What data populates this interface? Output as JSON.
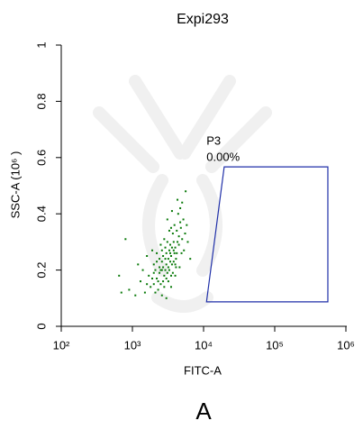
{
  "chart_data": {
    "type": "scatter",
    "title": "Expi293",
    "xlabel": "FITC-A",
    "ylabel": "SSC-A (10⁶ )",
    "xscale": "log",
    "color": "#0a7a0a",
    "xlim": [
      100,
      1000000
    ],
    "xticks": [
      {
        "value": 100,
        "label": "10²"
      },
      {
        "value": 1000,
        "label": "10³"
      },
      {
        "value": 10000,
        "label": "10⁴"
      },
      {
        "value": 100000,
        "label": "10⁵"
      },
      {
        "value": 1000000,
        "label": "10⁶"
      }
    ],
    "ylim": [
      0,
      1
    ],
    "yticks": [
      0,
      0.2,
      0.4,
      0.6,
      0.8,
      1
    ],
    "gate": {
      "x": [
        19500,
        558000,
        558000,
        11000
      ],
      "y": [
        0.567,
        0.567,
        0.087,
        0.087
      ],
      "color": "#1f2fa8"
    },
    "annotations": [
      "P3",
      "0.00%"
    ],
    "x": [
      2500,
      3000,
      3500,
      2800,
      3200,
      4000,
      2200,
      2600,
      3800,
      4200,
      2000,
      2400,
      3300,
      3600,
      2900,
      4500,
      3100,
      2700,
      3400,
      4100,
      1800,
      2100,
      3700,
      4800,
      5200,
      4400,
      5000,
      5600,
      4700,
      3900,
      1500,
      1300,
      1100,
      900,
      700,
      650,
      800,
      1200,
      1600,
      1900,
      2300,
      2600,
      3000,
      3500,
      4000,
      4600,
      5300,
      6000,
      6500,
      5800,
      2200,
      2800,
      3300,
      3100,
      4300,
      3600,
      2500,
      2000,
      1700,
      1400,
      2400,
      2700,
      3000,
      3200,
      3500,
      3800,
      4100,
      2900,
      3400,
      2600,
      2300,
      2100,
      1900,
      2800,
      3600,
      4500,
      5000,
      3900,
      3700,
      4900,
      3100,
      2700,
      2400,
      2200,
      3300,
      3000,
      4200,
      4700,
      5500,
      3500,
      2500,
      2000,
      1600,
      2900,
      3200,
      4300,
      3800,
      4000,
      2600,
      3400
    ],
    "values": [
      0.2,
      0.22,
      0.25,
      0.18,
      0.21,
      0.28,
      0.17,
      0.23,
      0.3,
      0.26,
      0.15,
      0.19,
      0.27,
      0.22,
      0.24,
      0.32,
      0.19,
      0.16,
      0.29,
      0.24,
      0.14,
      0.2,
      0.33,
      0.35,
      0.38,
      0.4,
      0.44,
      0.48,
      0.42,
      0.36,
      0.12,
      0.16,
      0.11,
      0.13,
      0.12,
      0.18,
      0.31,
      0.22,
      0.25,
      0.27,
      0.13,
      0.11,
      0.1,
      0.14,
      0.18,
      0.21,
      0.27,
      0.3,
      0.24,
      0.36,
      0.26,
      0.31,
      0.34,
      0.38,
      0.45,
      0.41,
      0.29,
      0.22,
      0.18,
      0.2,
      0.24,
      0.21,
      0.26,
      0.16,
      0.18,
      0.23,
      0.21,
      0.28,
      0.23,
      0.27,
      0.16,
      0.12,
      0.17,
      0.14,
      0.28,
      0.29,
      0.31,
      0.26,
      0.19,
      0.26,
      0.3,
      0.25,
      0.21,
      0.23,
      0.2,
      0.17,
      0.34,
      0.37,
      0.33,
      0.35,
      0.15,
      0.19,
      0.15,
      0.2,
      0.24,
      0.3,
      0.27,
      0.22,
      0.2,
      0.26
    ]
  },
  "caption": "A"
}
